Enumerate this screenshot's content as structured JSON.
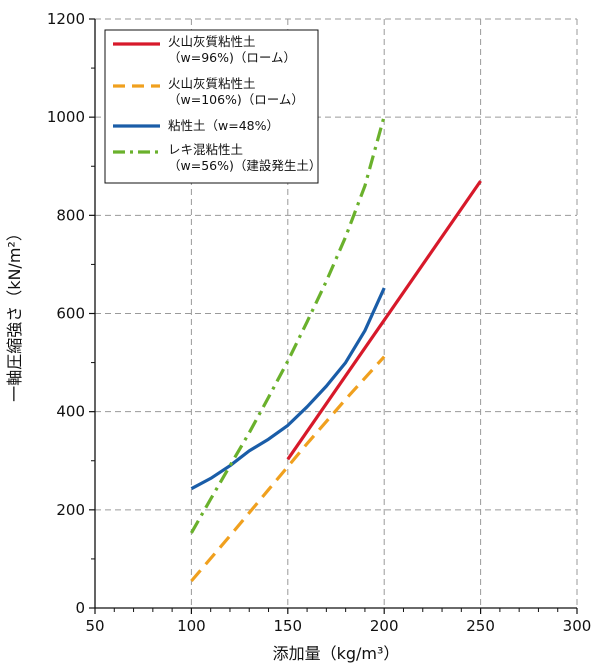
{
  "chart_data": {
    "type": "line",
    "xlabel": "添加量（kg/m³）",
    "ylabel": "一軸圧縮強さ（kN/m²）",
    "xlim": [
      50,
      300
    ],
    "ylim": [
      0,
      1200
    ],
    "xticks": [
      50,
      100,
      150,
      200,
      250,
      300
    ],
    "yticks": [
      0,
      200,
      400,
      600,
      800,
      1000,
      1200
    ],
    "grid": true,
    "legend_position": "top-left",
    "series": [
      {
        "name_line1": "火山灰質粘性土",
        "name_line2": "（w=96%)（ローム）",
        "color": "#d7192a",
        "dash": "solid",
        "points": [
          [
            150,
            303
          ],
          [
            250,
            870
          ]
        ]
      },
      {
        "name_line1": "火山灰質粘性土",
        "name_line2": "（w=106%)（ローム）",
        "color": "#f0a01e",
        "dash": "dashed",
        "points": [
          [
            100,
            55
          ],
          [
            120,
            147
          ],
          [
            140,
            241
          ],
          [
            160,
            335
          ],
          [
            180,
            425
          ],
          [
            200,
            512
          ]
        ]
      },
      {
        "name_line1": "粘性土（w=48%）",
        "name_line2": "",
        "color": "#1a5da8",
        "dash": "solid",
        "points": [
          [
            100,
            243
          ],
          [
            110,
            264
          ],
          [
            120,
            290
          ],
          [
            130,
            320
          ],
          [
            140,
            344
          ],
          [
            150,
            372
          ],
          [
            160,
            410
          ],
          [
            170,
            452
          ],
          [
            180,
            500
          ],
          [
            190,
            565
          ],
          [
            200,
            652
          ]
        ]
      },
      {
        "name_line1": "レキ混粘性土",
        "name_line2": "（w=56%)（建設発生土）",
        "color": "#6ab12c",
        "dash": "dashdot",
        "points": [
          [
            100,
            153
          ],
          [
            110,
            222
          ],
          [
            120,
            290
          ],
          [
            130,
            357
          ],
          [
            140,
            429
          ],
          [
            150,
            503
          ],
          [
            160,
            583
          ],
          [
            170,
            666
          ],
          [
            180,
            756
          ],
          [
            190,
            860
          ],
          [
            200,
            1002
          ]
        ]
      }
    ]
  }
}
